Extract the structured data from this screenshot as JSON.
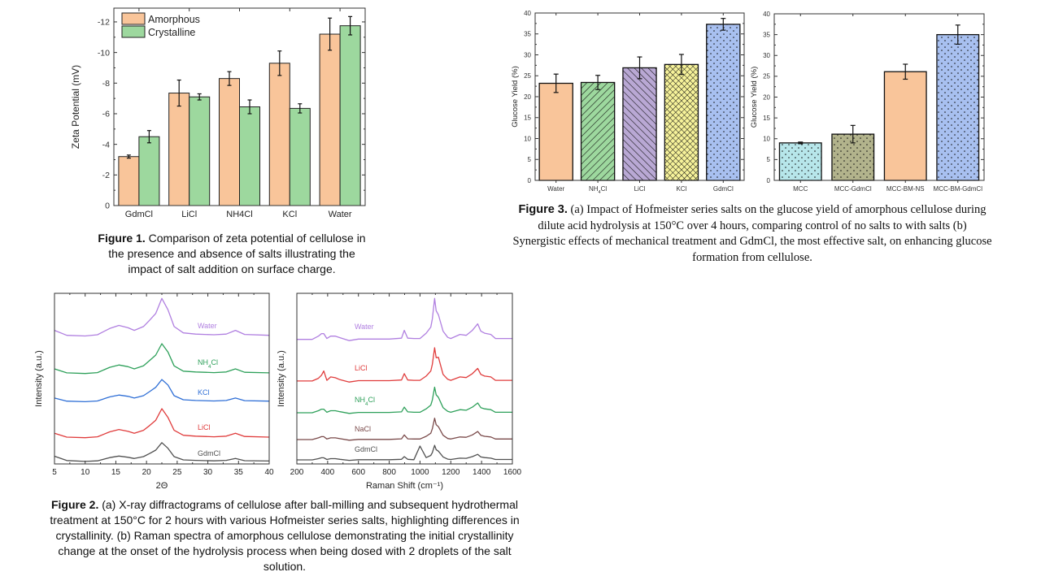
{
  "chart_data": [
    {
      "id": "fig1",
      "type": "bar",
      "xlabel": "",
      "ylabel": "Zeta Potential (mV)",
      "ylim": [
        0,
        -12.9
      ],
      "yticks": [
        0,
        -2,
        -4,
        -6,
        -8,
        -10,
        -12
      ],
      "grid": false,
      "legend": "top-left",
      "categories": [
        "GdmCl",
        "LiCl",
        "NH4Cl",
        "KCl",
        "Water"
      ],
      "series": [
        {
          "name": "Amorphous",
          "color": "#f9c59a",
          "values": [
            -3.2,
            -7.35,
            -8.3,
            -9.3,
            -11.2
          ],
          "errors": [
            0.1,
            0.85,
            0.45,
            0.8,
            1.05
          ]
        },
        {
          "name": "Crystalline",
          "color": "#9dd89e",
          "values": [
            -4.5,
            -7.1,
            -6.45,
            -6.35,
            -11.75
          ],
          "errors": [
            0.4,
            0.2,
            0.45,
            0.3,
            0.6
          ]
        }
      ]
    },
    {
      "id": "fig3a",
      "type": "bar",
      "xlabel": "",
      "ylabel": "Glucose Yield (%)",
      "ylim": [
        0,
        40
      ],
      "yticks": [
        0,
        5,
        10,
        15,
        20,
        25,
        30,
        35,
        40
      ],
      "grid": false,
      "categories": [
        "Water",
        "NH4Cl",
        "LiCl",
        "KCl",
        "GdmCl"
      ],
      "values": [
        23.2,
        23.4,
        26.9,
        27.7,
        37.3
      ],
      "errors": [
        2.2,
        1.7,
        2.6,
        2.4,
        1.4
      ],
      "colors": [
        "#f9c59a",
        "#9dd89e",
        "#b9a8d4",
        "#f6f29a",
        "#a8c0f0"
      ],
      "patterns": [
        "none",
        "hatch-forward",
        "hatch-back",
        "crosshatch",
        "dots"
      ]
    },
    {
      "id": "fig3b",
      "type": "bar",
      "xlabel": "",
      "ylabel": "Glucose Yield (%)",
      "ylim": [
        0,
        40
      ],
      "yticks": [
        0,
        5,
        10,
        15,
        20,
        25,
        30,
        35,
        40
      ],
      "grid": false,
      "categories": [
        "MCC",
        "MCC-GdmCl",
        "MCC-BM-NS",
        "MCC-BM-GdmCl"
      ],
      "values": [
        9.0,
        11.1,
        26.1,
        35.0
      ],
      "errors": [
        0.2,
        2.1,
        1.8,
        2.3
      ],
      "colors": [
        "#b7e6ea",
        "#b2b38c",
        "#f9c59a",
        "#a8c0f0"
      ],
      "patterns": [
        "dots",
        "dots",
        "none",
        "dots"
      ]
    },
    {
      "id": "fig2a",
      "type": "line",
      "xlabel": "2Θ",
      "ylabel": "Intensity (a.u.)",
      "xlim": [
        5,
        40
      ],
      "xticks": [
        5,
        10,
        15,
        20,
        25,
        30,
        35,
        40
      ],
      "ylim": [
        0,
        100
      ],
      "yticks_shown": false,
      "grid": false,
      "x": [
        5,
        7,
        10,
        12,
        14,
        15.5,
        17,
        18,
        19.5,
        20.5,
        21.5,
        22.5,
        23.5,
        24.5,
        26,
        28,
        31,
        33,
        34.5,
        36,
        40
      ],
      "series": [
        {
          "name": "Water",
          "color": "#b07fe0",
          "values": [
            78.3,
            75.4,
            75,
            75.7,
            79.4,
            81.2,
            79.8,
            78.3,
            80.5,
            84.2,
            88.2,
            97,
            90.4,
            80.5,
            76.8,
            76.1,
            75.7,
            76.1,
            78.3,
            75.9,
            75.4
          ]
        },
        {
          "name": "NH4Cl",
          "color": "#2ea05a",
          "values": [
            55.7,
            53.4,
            53,
            53.5,
            56.6,
            58,
            57,
            55.7,
            57.5,
            60.6,
            63.8,
            70.5,
            65.6,
            57.5,
            54.4,
            53.9,
            53.5,
            53.9,
            55.7,
            53.7,
            53.4
          ]
        },
        {
          "name": "KCl",
          "color": "#2f6fd6",
          "values": [
            38.6,
            36.8,
            36.5,
            36.9,
            39.3,
            40.4,
            39.6,
            38.6,
            40,
            42.4,
            44.9,
            49.5,
            46.3,
            40,
            37.6,
            37.2,
            36.9,
            37.2,
            38.6,
            37.1,
            36.8
          ]
        },
        {
          "name": "LiCl",
          "color": "#e03c3c",
          "values": [
            18,
            15.7,
            15.4,
            15.9,
            18.8,
            20.2,
            19.1,
            18,
            19.7,
            22.5,
            25.6,
            32.4,
            27.3,
            19.7,
            16.8,
            16.3,
            15.9,
            16.3,
            18,
            16.1,
            15.7
          ]
        },
        {
          "name": "GdmCl",
          "color": "#505050",
          "values": [
            4.5,
            2,
            1.5,
            1.8,
            3.7,
            4.6,
            3.9,
            3.2,
            4.3,
            6.1,
            8.1,
            12.5,
            9.2,
            4.3,
            2.4,
            2.1,
            1.8,
            2.1,
            3.2,
            1.9,
            1.7
          ]
        }
      ]
    },
    {
      "id": "fig2b",
      "type": "line",
      "xlabel": "Raman Shift (cm⁻¹)",
      "ylabel": "Intensity (a.u.)",
      "xlim": [
        200,
        1600
      ],
      "xticks": [
        200,
        400,
        600,
        800,
        1000,
        1200,
        1400,
        1600
      ],
      "ylim": [
        0,
        100
      ],
      "yticks_shown": false,
      "grid": false,
      "x": [
        200,
        300,
        340,
        360,
        375,
        395,
        420,
        450,
        480,
        540,
        600,
        800,
        880,
        898,
        920,
        960,
        1000,
        1040,
        1070,
        1080,
        1095,
        1105,
        1120,
        1150,
        1180,
        1200,
        1260,
        1300,
        1340,
        1375,
        1395,
        1420,
        1460,
        1490,
        1520,
        1600
      ],
      "series": [
        {
          "name": "Water",
          "color": "#b07fe0",
          "values": [
            73,
            73,
            74.9,
            76.4,
            76.4,
            73.5,
            74.9,
            74.9,
            74,
            72.3,
            73.2,
            73.2,
            73.7,
            78.3,
            73.7,
            73.5,
            73.5,
            76.6,
            80.2,
            85,
            97,
            89.8,
            87.4,
            77.8,
            74.2,
            73.5,
            75.9,
            75.4,
            78.3,
            82.1,
            77.8,
            76.6,
            75.9,
            73.5,
            73.5,
            73.5
          ]
        },
        {
          "name": "LiCl",
          "color": "#e03c3c",
          "values": [
            48.6,
            48.6,
            50.2,
            52,
            54.5,
            49,
            51,
            50.5,
            49.4,
            48,
            48.8,
            48.8,
            49.2,
            52.9,
            49.2,
            49,
            49,
            51.5,
            54.5,
            58.4,
            68.1,
            62.3,
            62.5,
            52.5,
            49.6,
            49,
            51,
            50.6,
            52.9,
            56,
            52.5,
            51.5,
            51,
            49,
            49,
            49
          ]
        },
        {
          "name": "NH4Cl",
          "color": "#2ea05a",
          "values": [
            30,
            30,
            31.2,
            32.1,
            32.1,
            30.3,
            31.2,
            31.2,
            30.6,
            29.6,
            30.2,
            30.2,
            30.5,
            33.3,
            30.5,
            30.3,
            30.3,
            32.3,
            34.5,
            37.5,
            45,
            40.5,
            39,
            33,
            30.8,
            30.3,
            31.8,
            31.5,
            33.3,
            35.7,
            33,
            32.3,
            31.8,
            30.3,
            30.3,
            30.3
          ]
        },
        {
          "name": "NaCl",
          "color": "#7a4a4a",
          "values": [
            14.3,
            14.3,
            15.3,
            16,
            16,
            14.6,
            15.3,
            15.3,
            14.8,
            13.9,
            14.4,
            14.4,
            14.7,
            17,
            14.7,
            14.6,
            14.6,
            16.2,
            18,
            20.6,
            26.8,
            23,
            21.8,
            16.8,
            14.9,
            14.6,
            15.8,
            15.6,
            17,
            19,
            16.8,
            16.2,
            15.8,
            14.6,
            14.6,
            14.6
          ]
        },
        {
          "name": "GdmCl",
          "color": "#505050",
          "values": [
            2.4,
            2.4,
            3.1,
            3.6,
            3.6,
            2.6,
            3.1,
            3.1,
            2.7,
            2.1,
            2.5,
            2.5,
            2.7,
            4.3,
            2.7,
            2.5,
            10.5,
            3.7,
            5,
            6.6,
            10.9,
            8.4,
            7.5,
            4.1,
            2.8,
            2.6,
            3.4,
            3.3,
            4.3,
            5.6,
            4.1,
            3.7,
            3.4,
            2.6,
            2.6,
            2.6
          ]
        }
      ]
    }
  ],
  "captions": {
    "fig1": {
      "label": "Figure 1.",
      "lines": [
        " Comparison of zeta potential of cellulose in",
        "the presence and absence of salts illustrating the",
        "impact of salt addition on surface charge."
      ]
    },
    "fig2": {
      "label": "Figure 2.",
      "lines": [
        " (a) X-ray diffractograms of cellulose after ball-milling and subsequent hydrothermal",
        "treatment at 150°C for 2 hours with various Hofmeister series salts, highlighting differences in",
        "crystallinity. (b) Raman spectra of amorphous cellulose demonstrating the initial crystallinity",
        "change at the onset of the hydrolysis process when being dosed with 2 droplets of the salt",
        "solution."
      ]
    },
    "fig3": {
      "label": "Figure 3.",
      "lines": [
        " (a) Impact of Hofmeister series salts on the glucose yield of amorphous cellulose during",
        "dilute acid hydrolysis at 150°C over 4 hours, comparing control of no salts to with salts (b)",
        "Synergistic effects of mechanical treatment and GdmCl, the most effective salt, on enhancing glucose",
        "formation from cellulose."
      ]
    }
  }
}
